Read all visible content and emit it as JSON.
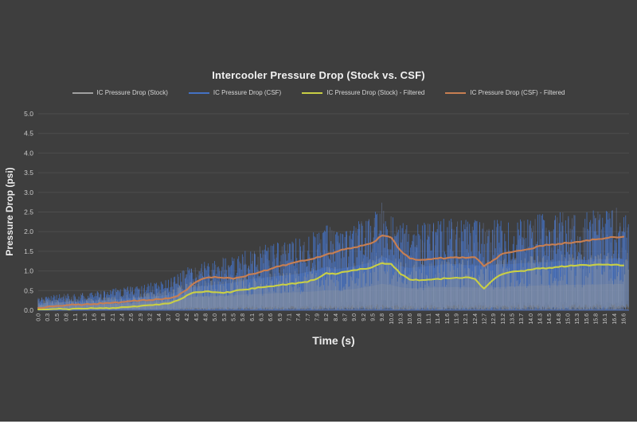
{
  "colors": {
    "background": "#3e3e3e",
    "gridline": "#4d4d4d",
    "tick_text": "#c9c9c9",
    "title_text": "#f2f2f2",
    "bottom_bar": "#ffffff",
    "baseline": "#4f6fb3"
  },
  "chart_data": {
    "type": "line",
    "title": "Intercooler Pressure Drop (Stock vs. CSF)",
    "xlabel": "Time (s)",
    "ylabel": "Pressure Drop (psi)",
    "ylim": [
      0.0,
      5.0
    ],
    "ytick_labels": [
      "0.0",
      "0.5",
      "1.0",
      "1.5",
      "2.0",
      "2.5",
      "3.0",
      "3.5",
      "4.0",
      "4.5",
      "5.0"
    ],
    "grid": true,
    "legend_position": "top",
    "x_ticklabels": [
      "0.0",
      "0.3",
      "0.5",
      "0.8",
      "1.1",
      "1.3",
      "1.6",
      "1.8",
      "2.1",
      "2.4",
      "2.6",
      "2.9",
      "3.2",
      "3.4",
      "3.7",
      "4.0",
      "4.2",
      "4.5",
      "4.8",
      "5.0",
      "5.3",
      "5.5",
      "5.8",
      "6.1",
      "6.3",
      "6.6",
      "6.9",
      "7.1",
      "7.4",
      "7.7",
      "7.9",
      "8.2",
      "8.4",
      "8.7",
      "9.0",
      "9.2",
      "9.5",
      "9.8",
      "10.0",
      "10.3",
      "10.6",
      "10.8",
      "11.1",
      "11.4",
      "11.6",
      "11.9",
      "12.1",
      "12.4",
      "12.7",
      "12.9",
      "13.2",
      "13.5",
      "13.7",
      "14.0",
      "14.3",
      "14.5",
      "14.8",
      "15.0",
      "15.3",
      "15.6",
      "15.8",
      "16.1",
      "16.4",
      "16.6"
    ],
    "series": [
      {
        "name": "IC Pressure Drop (Stock)",
        "style": "raw-noisy",
        "color": "#a0a0a0",
        "envelope_bottom": 0.0,
        "envelope_top": [
          0.25,
          0.27,
          0.28,
          0.28,
          0.3,
          0.3,
          0.32,
          0.33,
          0.35,
          0.38,
          0.4,
          0.44,
          0.46,
          0.48,
          0.52,
          0.62,
          0.72,
          0.78,
          0.8,
          0.8,
          0.82,
          0.85,
          0.88,
          0.9,
          0.92,
          0.95,
          0.98,
          1.0,
          1.02,
          1.05,
          1.08,
          1.12,
          1.12,
          1.15,
          1.2,
          1.28,
          1.38,
          1.5,
          1.42,
          1.3,
          1.25,
          1.25,
          1.28,
          1.3,
          1.3,
          1.32,
          1.3,
          1.28,
          1.28,
          1.3,
          1.32,
          1.35,
          1.35,
          1.38,
          1.4,
          1.4,
          1.42,
          1.42,
          1.45,
          1.45,
          1.45,
          1.48,
          1.5,
          1.48
        ]
      },
      {
        "name": "IC Pressure Drop (CSF)",
        "style": "raw-noisy",
        "color": "#4472c4",
        "highlight_color": "#7b97d6",
        "envelope_bottom": 0.0,
        "envelope_top": [
          0.35,
          0.38,
          0.4,
          0.42,
          0.44,
          0.46,
          0.48,
          0.5,
          0.55,
          0.58,
          0.62,
          0.66,
          0.7,
          0.72,
          0.78,
          0.95,
          1.1,
          1.2,
          1.25,
          1.3,
          1.35,
          1.4,
          1.5,
          1.6,
          1.65,
          1.7,
          1.75,
          1.8,
          1.85,
          1.95,
          2.05,
          2.2,
          2.1,
          2.15,
          2.25,
          2.35,
          2.45,
          2.75,
          2.55,
          2.25,
          2.15,
          2.2,
          2.25,
          2.3,
          2.35,
          2.35,
          2.3,
          2.3,
          2.25,
          2.3,
          2.35,
          2.35,
          2.4,
          2.4,
          2.45,
          2.45,
          2.5,
          2.5,
          2.55,
          2.55,
          2.6,
          2.6,
          2.65,
          2.6
        ]
      },
      {
        "name": "IC Pressure Drop (Stock) - Filtered",
        "style": "smooth-line",
        "color": "#c9cf45",
        "values": [
          0.02,
          0.02,
          0.03,
          0.03,
          0.04,
          0.04,
          0.05,
          0.05,
          0.06,
          0.08,
          0.09,
          0.11,
          0.13,
          0.14,
          0.17,
          0.25,
          0.38,
          0.46,
          0.48,
          0.46,
          0.44,
          0.48,
          0.52,
          0.56,
          0.58,
          0.61,
          0.64,
          0.67,
          0.7,
          0.72,
          0.8,
          0.95,
          0.92,
          0.98,
          1.02,
          1.05,
          1.1,
          1.2,
          1.18,
          0.92,
          0.78,
          0.76,
          0.78,
          0.8,
          0.81,
          0.83,
          0.84,
          0.8,
          0.55,
          0.78,
          0.92,
          0.98,
          1.0,
          1.03,
          1.06,
          1.08,
          1.1,
          1.12,
          1.14,
          1.15,
          1.16,
          1.16,
          1.16,
          1.14
        ]
      },
      {
        "name": "IC Pressure Drop (CSF) - Filtered",
        "style": "smooth-line",
        "color": "#c87f52",
        "values": [
          0.06,
          0.09,
          0.11,
          0.13,
          0.14,
          0.15,
          0.16,
          0.17,
          0.19,
          0.21,
          0.23,
          0.25,
          0.26,
          0.28,
          0.3,
          0.36,
          0.52,
          0.72,
          0.82,
          0.85,
          0.82,
          0.8,
          0.85,
          0.92,
          0.98,
          1.05,
          1.12,
          1.18,
          1.24,
          1.28,
          1.35,
          1.42,
          1.48,
          1.55,
          1.6,
          1.65,
          1.72,
          1.9,
          1.85,
          1.52,
          1.32,
          1.28,
          1.3,
          1.32,
          1.33,
          1.35,
          1.33,
          1.35,
          1.12,
          1.28,
          1.44,
          1.48,
          1.52,
          1.56,
          1.64,
          1.66,
          1.69,
          1.71,
          1.74,
          1.78,
          1.8,
          1.83,
          1.86,
          1.87
        ]
      }
    ]
  }
}
